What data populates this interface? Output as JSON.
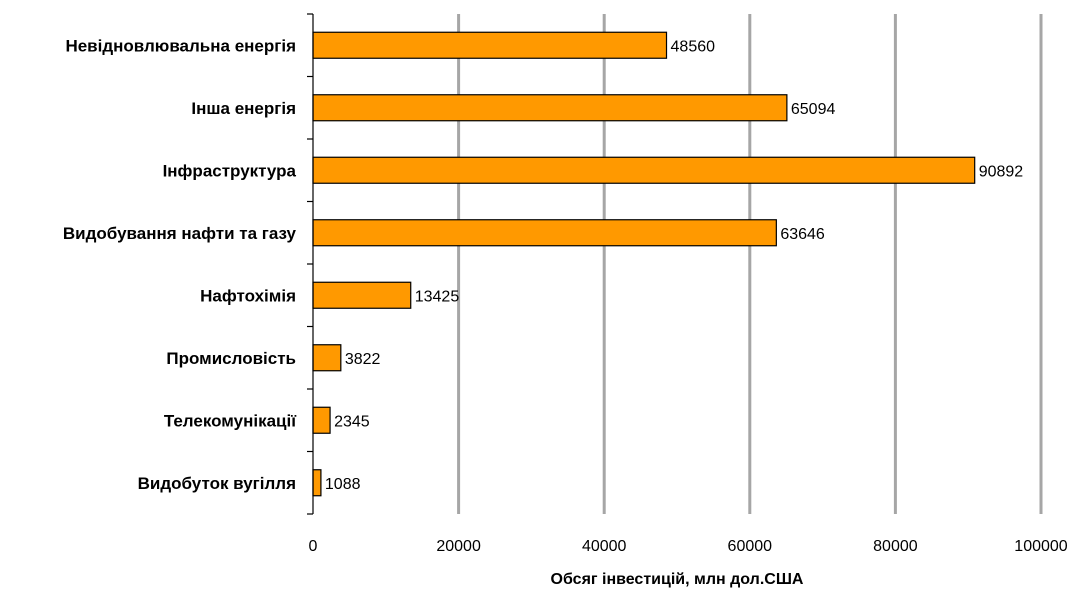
{
  "chart_data": {
    "type": "bar",
    "orientation": "horizontal",
    "categories": [
      "Невідновлювальна енергія",
      "Інша енергія",
      "Інфраструктура",
      "Видобування нафти та газу",
      "Нафтохімія",
      "Промисловість",
      "Телекомунікації",
      "Видобуток вугілля"
    ],
    "values": [
      48560,
      65094,
      90892,
      63646,
      13425,
      3822,
      2345,
      1088
    ],
    "data_labels": [
      "48560",
      "65094",
      "90892",
      "63646",
      "13425",
      "3822",
      "2345",
      "1088"
    ],
    "xlabel": "Обсяг інвестицій, млн дол.США",
    "xlim": [
      0,
      100000
    ],
    "x_ticks": [
      0,
      20000,
      40000,
      60000,
      80000,
      100000
    ],
    "x_tick_labels": [
      "0",
      "20000",
      "40000",
      "60000",
      "80000",
      "100000"
    ],
    "grid": "vertical major gridlines",
    "legend": "none",
    "colors": {
      "bar_fill": "#FF9900",
      "bar_stroke": "#000000",
      "grid": "#A6A6A6",
      "axis": "#000000"
    }
  }
}
